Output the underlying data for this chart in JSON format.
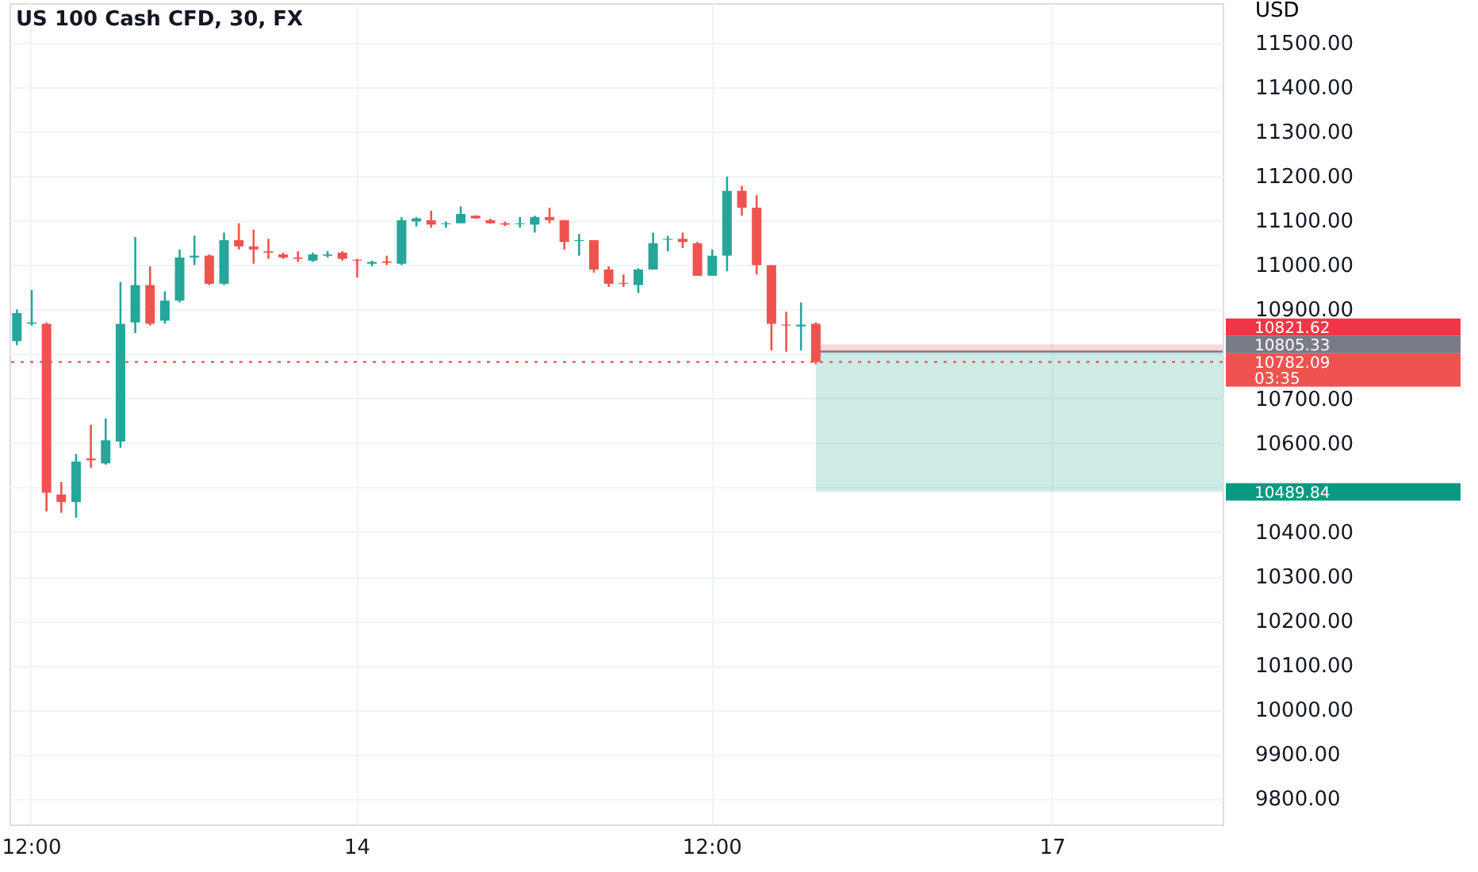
{
  "chart_data": {
    "type": "candlestick",
    "title": "US 100 Cash CFD, 30, FX",
    "ylabel": "USD",
    "categories": [
      null,
      "12:00",
      null,
      null,
      null,
      null,
      null,
      null,
      null,
      null,
      null,
      null,
      null,
      null,
      null,
      null,
      null,
      null,
      null,
      null,
      null,
      null,
      null,
      "14",
      null,
      null,
      null,
      null,
      null,
      null,
      null,
      null,
      null,
      null,
      null,
      null,
      null,
      null,
      null,
      null,
      null,
      null,
      null,
      null,
      null,
      null,
      null,
      "12:00",
      null,
      null,
      null,
      null,
      null,
      null,
      null,
      null,
      null,
      null,
      null,
      null,
      null,
      null,
      null,
      null,
      null,
      null,
      null,
      null,
      null,
      null,
      "17",
      null,
      null,
      null,
      null,
      null,
      null,
      null,
      null,
      null,
      null,
      null
    ],
    "ohlc": [
      [
        10829,
        10900,
        10820,
        10892
      ],
      [
        10868,
        10944,
        10864,
        10871
      ],
      [
        10868,
        10871,
        10446,
        10488
      ],
      [
        10484,
        10512,
        10443,
        10467
      ],
      [
        10467,
        10575,
        10432,
        10558
      ],
      [
        10565,
        10641,
        10544,
        10561
      ],
      [
        10554,
        10655,
        10551,
        10606
      ],
      [
        10603,
        10962,
        10589,
        10868
      ],
      [
        10871,
        11063,
        10847,
        10955
      ],
      [
        10955,
        10997,
        10864,
        10868
      ],
      [
        10875,
        10941,
        10868,
        10920
      ],
      [
        10920,
        11035,
        10916,
        11017
      ],
      [
        11017,
        11066,
        11000,
        11021
      ],
      [
        11021,
        11024,
        10955,
        10958
      ],
      [
        10958,
        11073,
        10955,
        11056
      ],
      [
        11056,
        11094,
        11035,
        11042
      ],
      [
        11042,
        11080,
        11003,
        11035
      ],
      [
        11031,
        11059,
        11014,
        11028
      ],
      [
        11024,
        11028,
        11014,
        11017
      ],
      [
        11017,
        11031,
        11007,
        11014
      ],
      [
        11010,
        11028,
        11007,
        11024
      ],
      [
        11021,
        11031,
        11017,
        11024
      ],
      [
        11028,
        11031,
        11010,
        11014
      ],
      [
        11012,
        11014,
        10972,
        11010
      ],
      [
        11003,
        11010,
        10997,
        11007
      ],
      [
        11008,
        11021,
        11000,
        11005
      ],
      [
        11003,
        11108,
        11000,
        11101
      ],
      [
        11098,
        11108,
        11087,
        11105
      ],
      [
        11101,
        11122,
        11084,
        11091
      ],
      [
        11092,
        11098,
        11084,
        11094
      ],
      [
        11094,
        11132,
        11094,
        11115
      ],
      [
        11111,
        11112,
        11104,
        11105
      ],
      [
        11101,
        11104,
        11093,
        11094
      ],
      [
        11094,
        11098,
        11088,
        11091
      ],
      [
        11092,
        11108,
        11084,
        11094
      ],
      [
        11091,
        11111,
        11073,
        11108
      ],
      [
        11108,
        11129,
        11094,
        11101
      ],
      [
        11101,
        11101,
        11035,
        11052
      ],
      [
        11054,
        11070,
        11021,
        11056
      ],
      [
        11056,
        11056,
        10983,
        10990
      ],
      [
        10990,
        10997,
        10951,
        10958
      ],
      [
        10960,
        10979,
        10951,
        10958
      ],
      [
        10955,
        10993,
        10937,
        10990
      ],
      [
        10990,
        11073,
        10990,
        11049
      ],
      [
        11057,
        11066,
        11031,
        11059
      ],
      [
        11059,
        11073,
        11038,
        11052
      ],
      [
        11049,
        11052,
        10976,
        10976
      ],
      [
        10976,
        11035,
        10976,
        11021
      ],
      [
        11021,
        11199,
        10986,
        11167
      ],
      [
        11167,
        11178,
        11111,
        11129
      ],
      [
        11129,
        11157,
        10979,
        11000
      ],
      [
        11000,
        11000,
        10808,
        10868
      ],
      [
        10866,
        10895,
        10805,
        10864
      ],
      [
        10862,
        10916,
        10808,
        10866
      ],
      [
        10868,
        10871,
        10777,
        10782.09
      ],
      null,
      null,
      null,
      null,
      null,
      null,
      null,
      null,
      null,
      null,
      null,
      null,
      null,
      null,
      null,
      null,
      null,
      null,
      null,
      null,
      null,
      null,
      null,
      null,
      null,
      null,
      null
    ],
    "colors": [
      "#26a69a",
      "#26a69a",
      "#ef5350",
      "#ef5350",
      "#26a69a",
      "#ef5350",
      "#26a69a",
      "#26a69a",
      "#26a69a",
      "#ef5350",
      "#26a69a",
      "#26a69a",
      "#26a69a",
      "#ef5350",
      "#26a69a",
      "#ef5350",
      "#ef5350",
      "#ef5350",
      "#ef5350",
      "#ef5350",
      "#26a69a",
      "#26a69a",
      "#ef5350",
      "#ef5350",
      "#26a69a",
      "#ef5350",
      "#26a69a",
      "#26a69a",
      "#ef5350",
      "#26a69a",
      "#26a69a",
      "#ef5350",
      "#ef5350",
      "#ef5350",
      "#26a69a",
      "#26a69a",
      "#ef5350",
      "#ef5350",
      "#26a69a",
      "#ef5350",
      "#ef5350",
      "#ef5350",
      "#26a69a",
      "#26a69a",
      "#26a69a",
      "#ef5350",
      "#ef5350",
      "#26a69a",
      "#26a69a",
      "#ef5350",
      "#ef5350",
      "#ef5350",
      "#ef5350",
      "#26a69a",
      "#ef5350",
      null,
      null,
      null,
      null,
      null,
      null,
      null,
      null,
      null,
      null,
      null,
      null,
      null,
      null,
      null,
      null,
      null,
      null,
      null,
      null,
      null,
      null,
      null,
      null,
      null,
      null,
      null
    ],
    "ylim": [
      9742,
      11589
    ],
    "yticks": [
      {
        "value": 9800,
        "label": "9800.00"
      },
      {
        "value": 9900,
        "label": "9900.00"
      },
      {
        "value": 10000,
        "label": "10000.00"
      },
      {
        "value": 10100,
        "label": "10100.00"
      },
      {
        "value": 10200,
        "label": "10200.00"
      },
      {
        "value": 10300,
        "label": "10300.00"
      },
      {
        "value": 10400,
        "label": "10400.00"
      },
      {
        "value": 10500,
        "label": null
      },
      {
        "value": 10600,
        "label": "10600.00"
      },
      {
        "value": 10700,
        "label": "10700.00"
      },
      {
        "value": 10800,
        "label": null
      },
      {
        "value": 10900,
        "label": "10900.00"
      },
      {
        "value": 11000,
        "label": "11000.00"
      },
      {
        "value": 11100,
        "label": "11100.00"
      },
      {
        "value": 11200,
        "label": "11200.00"
      },
      {
        "value": 11300,
        "label": "11300.00"
      },
      {
        "value": 11400,
        "label": "11400.00"
      },
      {
        "value": 11500,
        "label": "11500.00"
      }
    ],
    "bands": [
      {
        "axis": "y",
        "from": 10805.33,
        "to": 10821.62,
        "label": "10821.62",
        "color": "#f23645"
      },
      {
        "axis": "y",
        "from": 10489.84,
        "to": 10805.33,
        "label": "10489.84",
        "color": "#089981"
      }
    ],
    "ref_lines": [
      {
        "axis": "y",
        "value": 10805.33,
        "label": "10805.33",
        "color": "#787b86",
        "line_style": "solid"
      },
      {
        "axis": "y",
        "value": 10782.09,
        "label": "10782.09\n03:35",
        "color": "#ef5350",
        "line_style": "dotted"
      }
    ],
    "grid": true
  }
}
